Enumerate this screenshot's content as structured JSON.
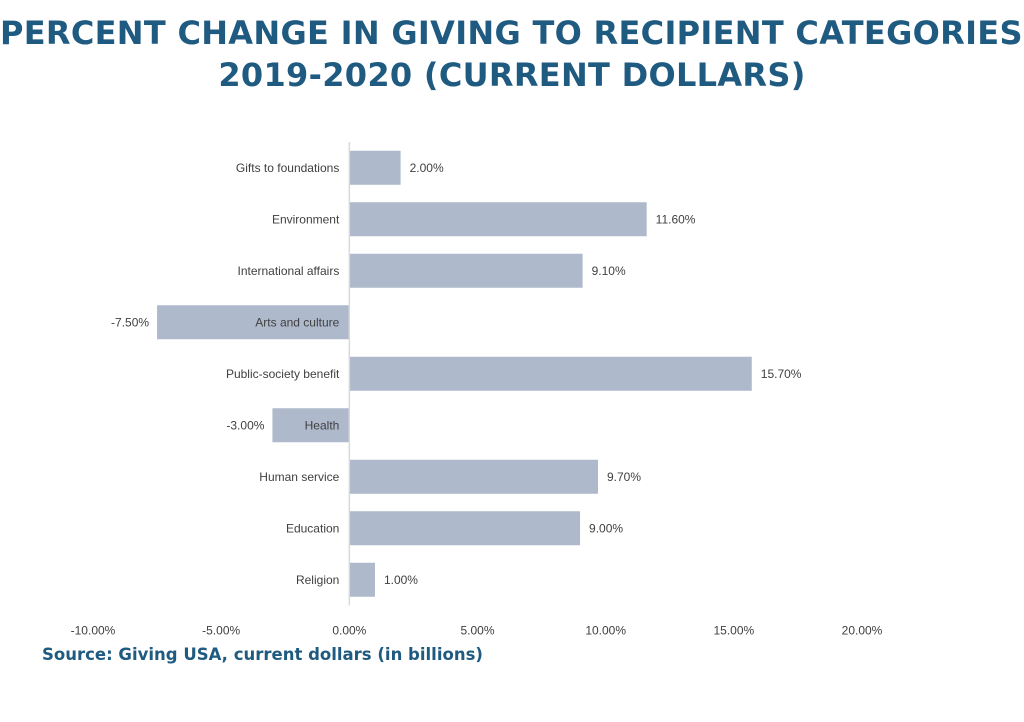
{
  "title_line1": "PERCENT CHANGE IN GIVING TO RECIPIENT CATEGORIES,",
  "title_line2": "2019-2020 (CURRENT DOLLARS)",
  "source": "Source: Giving USA, current dollars (in billions)",
  "colors": {
    "bar": "#aeb9cc",
    "title": "#1f5a80",
    "text": "#404040",
    "axis": "#d9d9d9"
  },
  "chart_data": {
    "type": "bar",
    "orientation": "horizontal",
    "categories": [
      "Gifts to foundations",
      "Environment",
      "International affairs",
      "Arts and culture",
      "Public-society benefit",
      "Health",
      "Human service",
      "Education",
      "Religion"
    ],
    "values": [
      2.0,
      11.6,
      9.1,
      -7.5,
      15.7,
      -3.0,
      9.7,
      9.0,
      1.0
    ],
    "data_labels": [
      "2.00%",
      "11.60%",
      "9.10%",
      "-7.50%",
      "15.70%",
      "-3.00%",
      "9.70%",
      "9.00%",
      "1.00%"
    ],
    "xlim": [
      -10,
      20
    ],
    "xticks": [
      -10,
      -5,
      0,
      5,
      10,
      15,
      20
    ],
    "xtick_labels": [
      "-10.00%",
      "-5.00%",
      "0.00%",
      "5.00%",
      "10.00%",
      "15.00%",
      "20.00%"
    ],
    "grid": false,
    "legend": "none"
  }
}
